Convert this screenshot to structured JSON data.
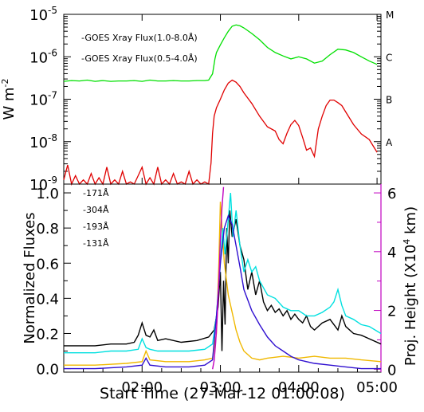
{
  "chart_data": [
    {
      "type": "line",
      "title": "",
      "ylabel_base": "W m",
      "ylabel_sup": "-2",
      "yscale": "log",
      "ylim_exp": [
        -9,
        -5
      ],
      "xlim_hours": [
        1.0,
        5.05
      ],
      "ytick_labels": [
        {
          "base": "10",
          "exp": "-5",
          "e": -5
        },
        {
          "base": "10",
          "exp": "-6",
          "e": -6
        },
        {
          "base": "10",
          "exp": "-7",
          "e": -7
        },
        {
          "base": "10",
          "exp": "-8",
          "e": -8
        },
        {
          "base": "10",
          "exp": "-9",
          "e": -9
        }
      ],
      "right_class_labels": [
        {
          "label": "M",
          "e": -5
        },
        {
          "label": "C",
          "e": -6
        },
        {
          "label": "B",
          "e": -7
        },
        {
          "label": "A",
          "e": -8
        }
      ],
      "series": [
        {
          "name": "-GOES Xray Flux(1.0-8.0Å)",
          "color": "#00e000",
          "x_hours": [
            1.0,
            1.1,
            1.2,
            1.3,
            1.4,
            1.5,
            1.6,
            1.7,
            1.8,
            1.9,
            2.0,
            2.1,
            2.2,
            2.3,
            2.4,
            2.5,
            2.6,
            2.7,
            2.8,
            2.85,
            2.9,
            2.93,
            2.95,
            3.0,
            3.05,
            3.1,
            3.15,
            3.2,
            3.25,
            3.3,
            3.4,
            3.5,
            3.6,
            3.7,
            3.8,
            3.9,
            4.0,
            4.1,
            4.2,
            4.3,
            4.4,
            4.5,
            4.6,
            4.7,
            4.8,
            4.9,
            5.0
          ],
          "log_values": [
            -6.58,
            -6.56,
            -6.57,
            -6.55,
            -6.58,
            -6.56,
            -6.58,
            -6.57,
            -6.57,
            -6.56,
            -6.58,
            -6.55,
            -6.57,
            -6.57,
            -6.56,
            -6.57,
            -6.57,
            -6.56,
            -6.56,
            -6.55,
            -6.4,
            -6.05,
            -5.9,
            -5.72,
            -5.55,
            -5.4,
            -5.28,
            -5.25,
            -5.27,
            -5.32,
            -5.45,
            -5.6,
            -5.78,
            -5.9,
            -5.98,
            -6.05,
            -6.0,
            -6.05,
            -6.15,
            -6.1,
            -5.95,
            -5.82,
            -5.84,
            -5.9,
            -6.0,
            -6.1,
            -6.18
          ]
        },
        {
          "name": "-GOES Xray Flux(0.5-4.0Å)",
          "color": "#e00000",
          "x_hours": [
            1.0,
            1.05,
            1.1,
            1.15,
            1.2,
            1.25,
            1.3,
            1.35,
            1.4,
            1.45,
            1.5,
            1.55,
            1.6,
            1.65,
            1.7,
            1.75,
            1.8,
            1.85,
            1.9,
            1.95,
            2.0,
            2.05,
            2.1,
            2.15,
            2.2,
            2.25,
            2.3,
            2.35,
            2.4,
            2.45,
            2.5,
            2.55,
            2.6,
            2.65,
            2.7,
            2.75,
            2.8,
            2.85,
            2.88,
            2.9,
            2.92,
            2.95,
            3.0,
            3.05,
            3.1,
            3.15,
            3.2,
            3.25,
            3.3,
            3.4,
            3.5,
            3.6,
            3.7,
            3.75,
            3.8,
            3.85,
            3.9,
            3.95,
            4.0,
            4.05,
            4.1,
            4.15,
            4.2,
            4.25,
            4.3,
            4.35,
            4.4,
            4.45,
            4.5,
            4.55,
            4.6,
            4.7,
            4.8,
            4.9,
            5.0
          ],
          "log_values": [
            -8.9,
            -8.55,
            -9.0,
            -8.8,
            -9.0,
            -8.9,
            -9.0,
            -8.75,
            -9.0,
            -8.85,
            -9.0,
            -8.6,
            -9.0,
            -8.9,
            -9.0,
            -8.7,
            -9.0,
            -8.95,
            -9.0,
            -8.8,
            -8.6,
            -9.0,
            -8.85,
            -9.0,
            -8.6,
            -9.0,
            -8.9,
            -9.0,
            -8.75,
            -9.0,
            -8.95,
            -9.0,
            -8.7,
            -9.0,
            -8.9,
            -9.0,
            -8.95,
            -9.0,
            -8.5,
            -7.8,
            -7.4,
            -7.2,
            -7.0,
            -6.78,
            -6.62,
            -6.55,
            -6.6,
            -6.7,
            -6.85,
            -7.1,
            -7.4,
            -7.65,
            -7.75,
            -7.95,
            -8.05,
            -7.8,
            -7.6,
            -7.5,
            -7.62,
            -7.9,
            -8.2,
            -8.15,
            -8.35,
            -7.7,
            -7.4,
            -7.15,
            -7.02,
            -7.02,
            -7.08,
            -7.15,
            -7.3,
            -7.6,
            -7.82,
            -7.95,
            -8.25
          ]
        }
      ]
    },
    {
      "type": "line",
      "title": "",
      "xlabel": "Start Time (27-Mar-12 01:00:08)",
      "ylabel": "Normalized Fluxes",
      "ylabel_right": "Proj. Height (X10",
      "ylabel_right_sup": "4",
      "ylabel_right_unit": " km)",
      "ylim": [
        -0.02,
        1.05
      ],
      "ylim_right": [
        -0.1,
        6.3
      ],
      "xlim_hours": [
        1.0,
        5.05
      ],
      "yticks": [
        {
          "value": 0.0,
          "label": "0.0"
        },
        {
          "value": 0.2,
          "label": "0.2"
        },
        {
          "value": 0.4,
          "label": "0.4"
        },
        {
          "value": 0.6,
          "label": "0.6"
        },
        {
          "value": 0.8,
          "label": "0.8"
        },
        {
          "value": 1.0,
          "label": "1.0"
        }
      ],
      "yticks_right": [
        {
          "value": 0,
          "label": "0"
        },
        {
          "value": 2,
          "label": "2"
        },
        {
          "value": 4,
          "label": "4"
        },
        {
          "value": 6,
          "label": "6"
        }
      ],
      "xticks": [
        {
          "value": 2.0,
          "label": "02:00"
        },
        {
          "value": 3.0,
          "label": "03:00"
        },
        {
          "value": 4.0,
          "label": "04:00"
        },
        {
          "value": 5.0,
          "label": "05:00"
        }
      ],
      "right_axis_color": "#c000c0",
      "series": [
        {
          "name": "-171Å",
          "color": "#000000",
          "x_hours": [
            1.0,
            1.2,
            1.4,
            1.6,
            1.8,
            1.9,
            1.95,
            2.0,
            2.05,
            2.1,
            2.15,
            2.2,
            2.3,
            2.5,
            2.7,
            2.85,
            2.92,
            2.97,
            3.0,
            3.02,
            3.04,
            3.06,
            3.08,
            3.1,
            3.12,
            3.15,
            3.2,
            3.25,
            3.3,
            3.35,
            3.4,
            3.45,
            3.5,
            3.55,
            3.6,
            3.65,
            3.7,
            3.75,
            3.8,
            3.85,
            3.9,
            3.95,
            4.0,
            4.05,
            4.1,
            4.15,
            4.2,
            4.3,
            4.4,
            4.5,
            4.55,
            4.6,
            4.7,
            4.8,
            4.9,
            5.05
          ],
          "values": [
            0.13,
            0.13,
            0.13,
            0.14,
            0.14,
            0.15,
            0.19,
            0.26,
            0.19,
            0.18,
            0.22,
            0.16,
            0.17,
            0.15,
            0.16,
            0.18,
            0.22,
            0.35,
            0.55,
            0.1,
            0.5,
            0.25,
            0.8,
            0.6,
            0.9,
            0.75,
            0.85,
            0.7,
            0.62,
            0.45,
            0.55,
            0.42,
            0.5,
            0.38,
            0.33,
            0.36,
            0.32,
            0.34,
            0.3,
            0.33,
            0.28,
            0.31,
            0.28,
            0.26,
            0.3,
            0.24,
            0.22,
            0.26,
            0.28,
            0.22,
            0.3,
            0.24,
            0.2,
            0.19,
            0.17,
            0.14
          ]
        },
        {
          "name": "-304Å",
          "color": "#f0b800",
          "x_hours": [
            1.0,
            1.4,
            1.8,
            2.0,
            2.05,
            2.1,
            2.3,
            2.6,
            2.8,
            2.9,
            2.95,
            2.98,
            3.0,
            3.05,
            3.1,
            3.15,
            3.2,
            3.25,
            3.3,
            3.4,
            3.5,
            3.6,
            3.8,
            4.0,
            4.2,
            4.4,
            4.6,
            4.8,
            5.05
          ],
          "values": [
            0.02,
            0.02,
            0.03,
            0.04,
            0.1,
            0.05,
            0.04,
            0.04,
            0.05,
            0.06,
            0.2,
            0.6,
            0.95,
            0.6,
            0.42,
            0.32,
            0.22,
            0.15,
            0.1,
            0.06,
            0.05,
            0.06,
            0.07,
            0.06,
            0.07,
            0.06,
            0.06,
            0.05,
            0.04
          ]
        },
        {
          "name": "-193Å",
          "color": "#00e0e0",
          "x_hours": [
            1.0,
            1.2,
            1.4,
            1.6,
            1.8,
            1.95,
            2.0,
            2.05,
            2.1,
            2.2,
            2.4,
            2.6,
            2.8,
            2.9,
            2.95,
            3.0,
            3.03,
            3.06,
            3.1,
            3.13,
            3.16,
            3.2,
            3.25,
            3.3,
            3.35,
            3.4,
            3.45,
            3.5,
            3.6,
            3.7,
            3.8,
            3.9,
            4.0,
            4.1,
            4.2,
            4.3,
            4.4,
            4.45,
            4.5,
            4.55,
            4.6,
            4.7,
            4.8,
            4.9,
            5.05
          ],
          "values": [
            0.09,
            0.09,
            0.09,
            0.1,
            0.1,
            0.11,
            0.17,
            0.12,
            0.11,
            0.1,
            0.1,
            0.1,
            0.11,
            0.14,
            0.3,
            0.6,
            0.8,
            0.65,
            0.85,
            1.0,
            0.75,
            0.9,
            0.7,
            0.55,
            0.62,
            0.55,
            0.58,
            0.5,
            0.42,
            0.4,
            0.35,
            0.33,
            0.33,
            0.3,
            0.3,
            0.32,
            0.35,
            0.38,
            0.45,
            0.36,
            0.3,
            0.28,
            0.25,
            0.24,
            0.2
          ]
        },
        {
          "name": "-131Å",
          "color": "#3010d0",
          "x_hours": [
            1.0,
            1.4,
            1.8,
            2.0,
            2.05,
            2.1,
            2.3,
            2.6,
            2.8,
            2.9,
            2.95,
            3.0,
            3.05,
            3.1,
            3.15,
            3.2,
            3.25,
            3.3,
            3.4,
            3.5,
            3.6,
            3.7,
            3.8,
            3.9,
            4.0,
            4.2,
            4.4,
            4.6,
            4.8,
            5.05
          ],
          "values": [
            0.0,
            0.0,
            0.01,
            0.02,
            0.06,
            0.02,
            0.01,
            0.01,
            0.02,
            0.05,
            0.3,
            0.6,
            0.8,
            0.87,
            0.82,
            0.7,
            0.58,
            0.45,
            0.33,
            0.25,
            0.18,
            0.13,
            0.1,
            0.07,
            0.05,
            0.03,
            0.02,
            0.01,
            0.0,
            0.0
          ]
        },
        {
          "name": "",
          "axis": "right",
          "color": "#c000c0",
          "x_hours": [
            2.9,
            2.92,
            2.94,
            2.96,
            2.98,
            3.0,
            3.02,
            3.04
          ],
          "values": [
            0.0,
            0.3,
            0.9,
            1.8,
            3.0,
            4.4,
            5.5,
            6.2
          ]
        }
      ]
    }
  ]
}
